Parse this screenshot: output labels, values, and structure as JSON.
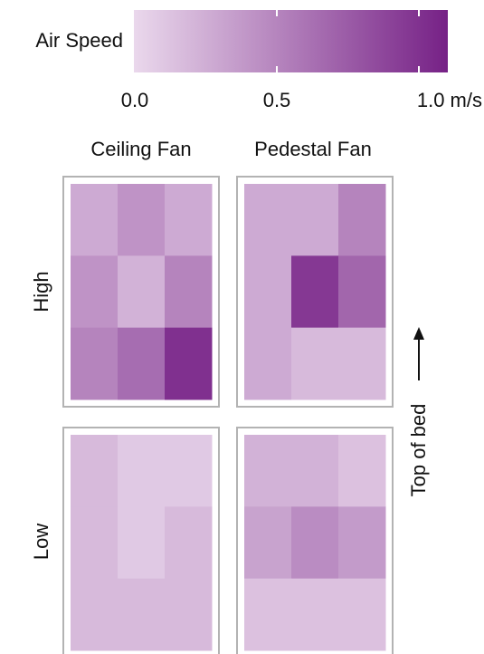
{
  "chart_data": {
    "type": "heatmap",
    "colorbar": {
      "title": "Air Speed",
      "ticks": [
        "0.0",
        "0.5",
        "1.0 m/s"
      ],
      "range": [
        0,
        1.2
      ],
      "color_low": "#ead8ec",
      "color_high": "#762186"
    },
    "columns": [
      "Ceiling Fan",
      "Pedestal Fan"
    ],
    "rows": [
      "High",
      "Low"
    ],
    "side_label": "Top of bed",
    "orientation_note": "arrow points toward top of bed",
    "panels": [
      {
        "row": "High",
        "column": "Ceiling Fan",
        "grid": [
          [
            0.3,
            0.45,
            0.3
          ],
          [
            0.45,
            0.25,
            0.55
          ],
          [
            0.55,
            0.7,
            1.1
          ]
        ]
      },
      {
        "row": "High",
        "column": "Pedestal Fan",
        "grid": [
          [
            0.3,
            0.3,
            0.55
          ],
          [
            0.3,
            1.05,
            0.75
          ],
          [
            0.3,
            0.2,
            0.2
          ]
        ]
      },
      {
        "row": "Low",
        "column": "Ceiling Fan",
        "grid": [
          [
            0.2,
            0.1,
            0.1
          ],
          [
            0.2,
            0.1,
            0.2
          ],
          [
            0.2,
            0.2,
            0.2
          ]
        ]
      },
      {
        "row": "Low",
        "column": "Pedestal Fan",
        "grid": [
          [
            0.25,
            0.25,
            0.15
          ],
          [
            0.35,
            0.5,
            0.4
          ],
          [
            0.15,
            0.15,
            0.15
          ]
        ]
      }
    ]
  }
}
